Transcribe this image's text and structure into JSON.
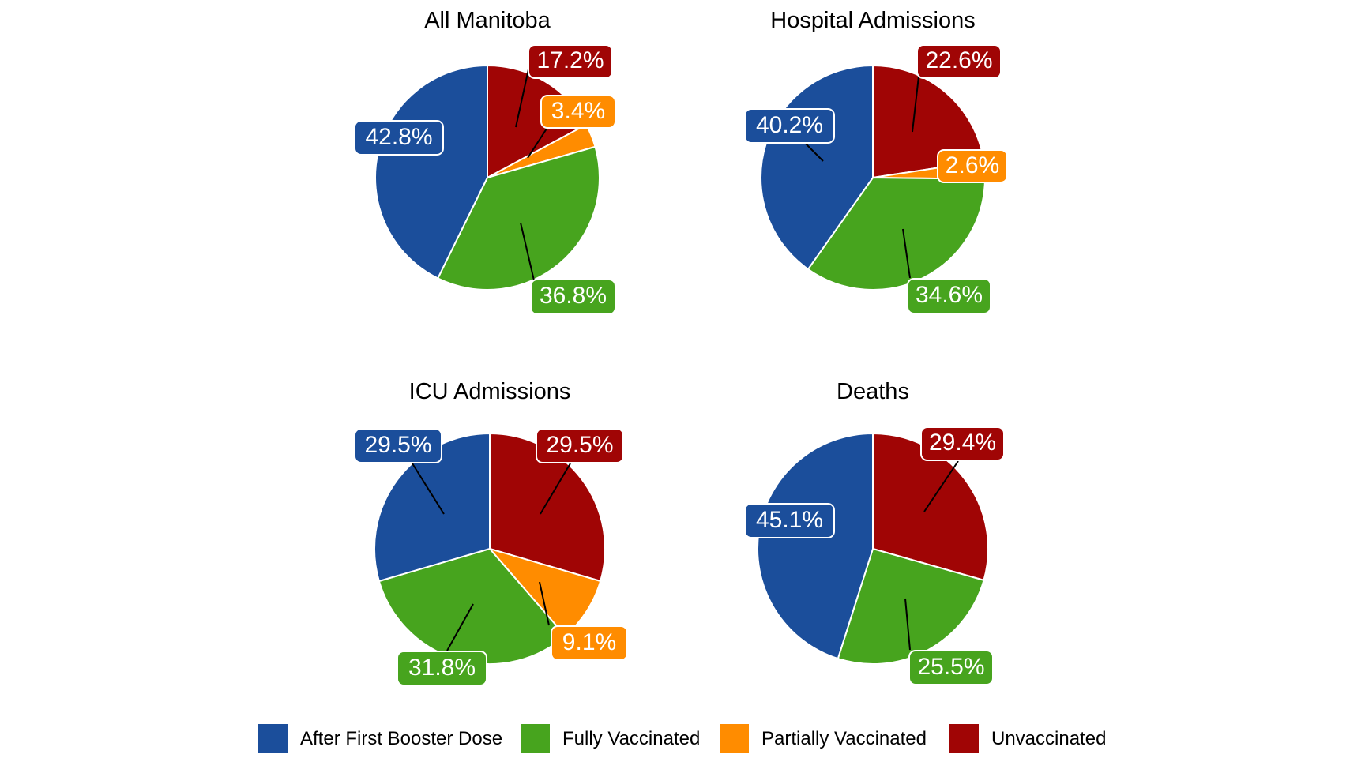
{
  "figure": {
    "background": "#FFFFFF",
    "colors": {
      "After First Booster Dose": "#1B4E9B",
      "Fully Vaccinated": "#47A41E",
      "Partially Vaccinated": "#FF8C00",
      "Unvaccinated": "#A00505"
    }
  },
  "chart_data": [
    {
      "type": "pie",
      "title": "All Manitoba",
      "start_angle_deg": 0,
      "direction": "clockwise",
      "slices": [
        {
          "category": "Unvaccinated",
          "value_pct": 17.2,
          "label": "17.2%"
        },
        {
          "category": "Partially Vaccinated",
          "value_pct": 3.4,
          "label": "3.4%"
        },
        {
          "category": "Fully Vaccinated",
          "value_pct": 36.8,
          "label": "36.8%"
        },
        {
          "category": "After First Booster Dose",
          "value_pct": 42.8,
          "label": "42.8%"
        }
      ]
    },
    {
      "type": "pie",
      "title": "Hospital Admissions",
      "start_angle_deg": 0,
      "direction": "clockwise",
      "slices": [
        {
          "category": "Unvaccinated",
          "value_pct": 22.6,
          "label": "22.6%"
        },
        {
          "category": "Partially Vaccinated",
          "value_pct": 2.6,
          "label": "2.6%"
        },
        {
          "category": "Fully Vaccinated",
          "value_pct": 34.6,
          "label": "34.6%"
        },
        {
          "category": "After First Booster Dose",
          "value_pct": 40.2,
          "label": "40.2%"
        }
      ]
    },
    {
      "type": "pie",
      "title": "ICU Admissions",
      "start_angle_deg": 0,
      "direction": "clockwise",
      "slices": [
        {
          "category": "Unvaccinated",
          "value_pct": 29.5,
          "label": "29.5%"
        },
        {
          "category": "Partially Vaccinated",
          "value_pct": 9.1,
          "label": "9.1%"
        },
        {
          "category": "Fully Vaccinated",
          "value_pct": 31.8,
          "label": "31.8%"
        },
        {
          "category": "After First Booster Dose",
          "value_pct": 29.5,
          "label": "29.5%"
        }
      ]
    },
    {
      "type": "pie",
      "title": "Deaths",
      "start_angle_deg": 0,
      "direction": "clockwise",
      "slices": [
        {
          "category": "Unvaccinated",
          "value_pct": 29.4,
          "label": "29.4%"
        },
        {
          "category": "Fully Vaccinated",
          "value_pct": 25.5,
          "label": "25.5%"
        },
        {
          "category": "After First Booster Dose",
          "value_pct": 45.1,
          "label": "45.1%"
        }
      ]
    }
  ],
  "legend": {
    "items": [
      {
        "label": "After First Booster Dose"
      },
      {
        "label": "Fully Vaccinated"
      },
      {
        "label": "Partially Vaccinated"
      },
      {
        "label": "Unvaccinated"
      }
    ]
  }
}
